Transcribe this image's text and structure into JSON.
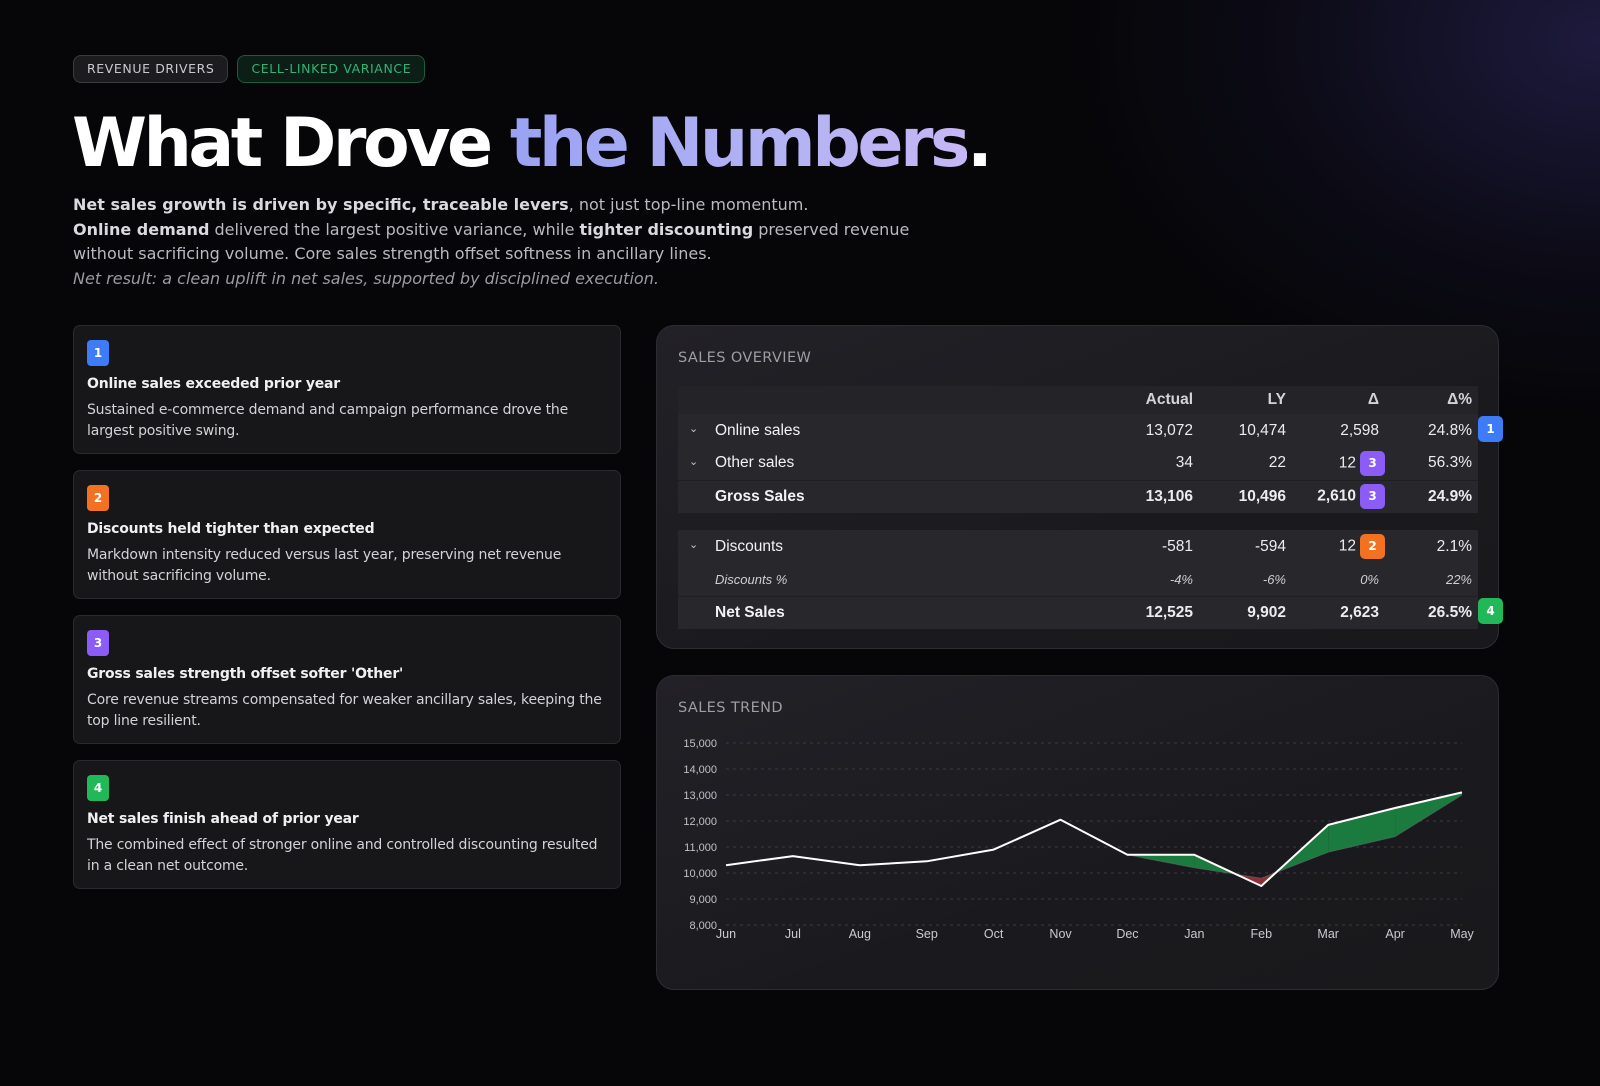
{
  "tags": [
    "REVENUE DRIVERS",
    "CELL-LINKED VARIANCE"
  ],
  "hero": {
    "part1": "What Drove ",
    "part2": "the Numbers",
    "part3": "."
  },
  "intro": {
    "l1_bold": "Net sales growth is driven by specific, traceable levers",
    "l1_rest": ", not just top-line momentum.",
    "l2_bold1": "Online demand",
    "l2_mid": " delivered the largest positive variance, while ",
    "l2_bold2": "tighter discounting",
    "l2_rest": " preserved revenue without sacrificing volume. Core sales strength offset softness in ancillary lines.",
    "l3": "Net result: a clean uplift in net sales, supported by disciplined execution."
  },
  "drivers": [
    {
      "n": "1",
      "title": "Online sales exceeded prior year",
      "desc": "Sustained e-commerce demand and campaign performance drove the largest positive swing.",
      "color": "#3d7bf7"
    },
    {
      "n": "2",
      "title": "Discounts held tighter than expected",
      "desc": "Markdown intensity reduced versus last year, preserving net revenue without sacrificing volume.",
      "color": "#f27221"
    },
    {
      "n": "3",
      "title": "Gross sales strength offset softer 'Other'",
      "desc": "Core revenue streams compensated for weaker ancillary sales, keeping the top line resilient.",
      "color": "#8b5cf6"
    },
    {
      "n": "4",
      "title": "Net sales finish ahead of prior year",
      "desc": "The combined effect of stronger online and controlled discounting resulted in a clean net outcome.",
      "color": "#21b85a"
    }
  ],
  "overview": {
    "title": "SALES OVERVIEW",
    "headers": {
      "actual": "Actual",
      "ly": "LY",
      "delta": "Δ",
      "delta_pct": "Δ%"
    },
    "rows": {
      "online": {
        "label": "Online sales",
        "actual": "13,072",
        "ly": "10,474",
        "delta": "2,598",
        "pct": "24.8%",
        "badge": "1"
      },
      "other": {
        "label": "Other sales",
        "actual": "34",
        "ly": "22",
        "delta": "12",
        "delta_badge": "3",
        "pct": "56.3%"
      },
      "gross": {
        "label": "Gross Sales",
        "actual": "13,106",
        "ly": "10,496",
        "delta": "2,610",
        "delta_badge": "3",
        "pct": "24.9%"
      },
      "discounts": {
        "label": "Discounts",
        "actual": "-581",
        "ly": "-594",
        "delta": "12",
        "delta_badge": "2",
        "pct": "2.1%"
      },
      "disc_pct": {
        "label": "Discounts %",
        "actual": "-4%",
        "ly": "-6%",
        "delta": "0%",
        "pct": "22%"
      },
      "net": {
        "label": "Net Sales",
        "actual": "12,525",
        "ly": "9,902",
        "delta": "2,623",
        "pct": "26.5%",
        "badge": "4"
      }
    }
  },
  "trend": {
    "title": "SALES TREND"
  },
  "chart_data": {
    "type": "line",
    "title": "SALES TREND",
    "categories": [
      "Jun",
      "Jul",
      "Aug",
      "Sep",
      "Oct",
      "Nov",
      "Dec",
      "Jan",
      "Feb",
      "Mar",
      "Apr",
      "May"
    ],
    "series": [
      {
        "name": "Actual",
        "values": [
          10300,
          10650,
          10300,
          10450,
          10900,
          12050,
          10700,
          10700,
          9500,
          11850,
          12500,
          13100
        ],
        "color": "#ffffff"
      },
      {
        "name": "LY",
        "values": [
          10300,
          10650,
          10300,
          10450,
          10900,
          12050,
          10700,
          10200,
          9800,
          10800,
          11400,
          13000
        ],
        "color": "#6f7077"
      }
    ],
    "ylim": [
      8000,
      15000
    ],
    "yticks": [
      "8,000",
      "9,000",
      "10,000",
      "11,000",
      "12,000",
      "13,000",
      "14,000",
      "15,000"
    ],
    "positive_fill": "#1b7a3e",
    "negative_fill": "#8e2f35",
    "grid": true
  }
}
